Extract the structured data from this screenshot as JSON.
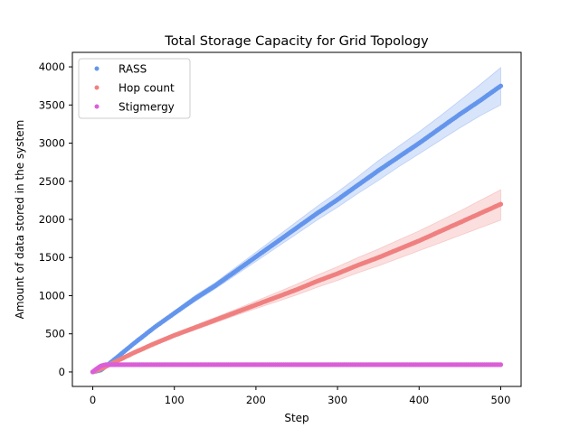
{
  "chart_data": {
    "type": "scatter",
    "title": "Total Storage Capacity for Grid Topology",
    "xlabel": "Step",
    "ylabel": "Amount of data stored in the system",
    "xlim": [
      -25,
      525
    ],
    "ylim": [
      -190,
      4190
    ],
    "xticks": [
      0,
      100,
      200,
      300,
      400,
      500
    ],
    "yticks": [
      0,
      500,
      1000,
      1500,
      2000,
      2500,
      3000,
      3500,
      4000
    ],
    "grid": false,
    "legend_position": "top-left",
    "series": [
      {
        "name": "RASS",
        "color": "#6495ed",
        "x": [
          0,
          10,
          25,
          50,
          75,
          100,
          125,
          150,
          175,
          200,
          225,
          250,
          275,
          300,
          325,
          350,
          375,
          400,
          425,
          450,
          475,
          500
        ],
        "y": [
          0,
          25,
          150,
          370,
          580,
          770,
          960,
          1130,
          1320,
          1510,
          1700,
          1890,
          2080,
          2260,
          2450,
          2640,
          2820,
          3000,
          3190,
          3380,
          3560,
          3750
        ],
        "band_lower": [
          0,
          20,
          140,
          350,
          555,
          740,
          920,
          1090,
          1270,
          1450,
          1630,
          1810,
          1990,
          2160,
          2340,
          2510,
          2690,
          2860,
          3030,
          3200,
          3360,
          3500
        ],
        "band_upper": [
          0,
          30,
          160,
          390,
          605,
          800,
          1000,
          1170,
          1370,
          1570,
          1770,
          1970,
          2170,
          2360,
          2560,
          2770,
          2960,
          3150,
          3350,
          3560,
          3770,
          3990
        ]
      },
      {
        "name": "Hop count",
        "color": "#f08080",
        "x": [
          0,
          10,
          25,
          50,
          75,
          100,
          125,
          150,
          175,
          200,
          225,
          250,
          275,
          300,
          325,
          350,
          375,
          400,
          425,
          450,
          475,
          500
        ],
        "y": [
          0,
          40,
          120,
          250,
          370,
          480,
          580,
          680,
          780,
          880,
          980,
          1080,
          1190,
          1290,
          1400,
          1500,
          1610,
          1720,
          1840,
          1960,
          2080,
          2200
        ],
        "band_lower": [
          0,
          35,
          110,
          235,
          350,
          455,
          550,
          645,
          740,
          830,
          920,
          1010,
          1110,
          1200,
          1300,
          1390,
          1490,
          1590,
          1690,
          1790,
          1890,
          1990
        ],
        "band_upper": [
          0,
          45,
          130,
          265,
          390,
          505,
          610,
          715,
          820,
          930,
          1040,
          1150,
          1270,
          1380,
          1500,
          1610,
          1730,
          1850,
          1980,
          2110,
          2250,
          2390
        ]
      },
      {
        "name": "Stigmergy",
        "color": "#da5fd8",
        "x": [
          0,
          5,
          10,
          15,
          20,
          50,
          100,
          150,
          200,
          250,
          300,
          350,
          400,
          450,
          500
        ],
        "y": [
          0,
          45,
          80,
          95,
          95,
          95,
          95,
          95,
          95,
          95,
          95,
          95,
          95,
          95,
          95
        ]
      }
    ]
  }
}
